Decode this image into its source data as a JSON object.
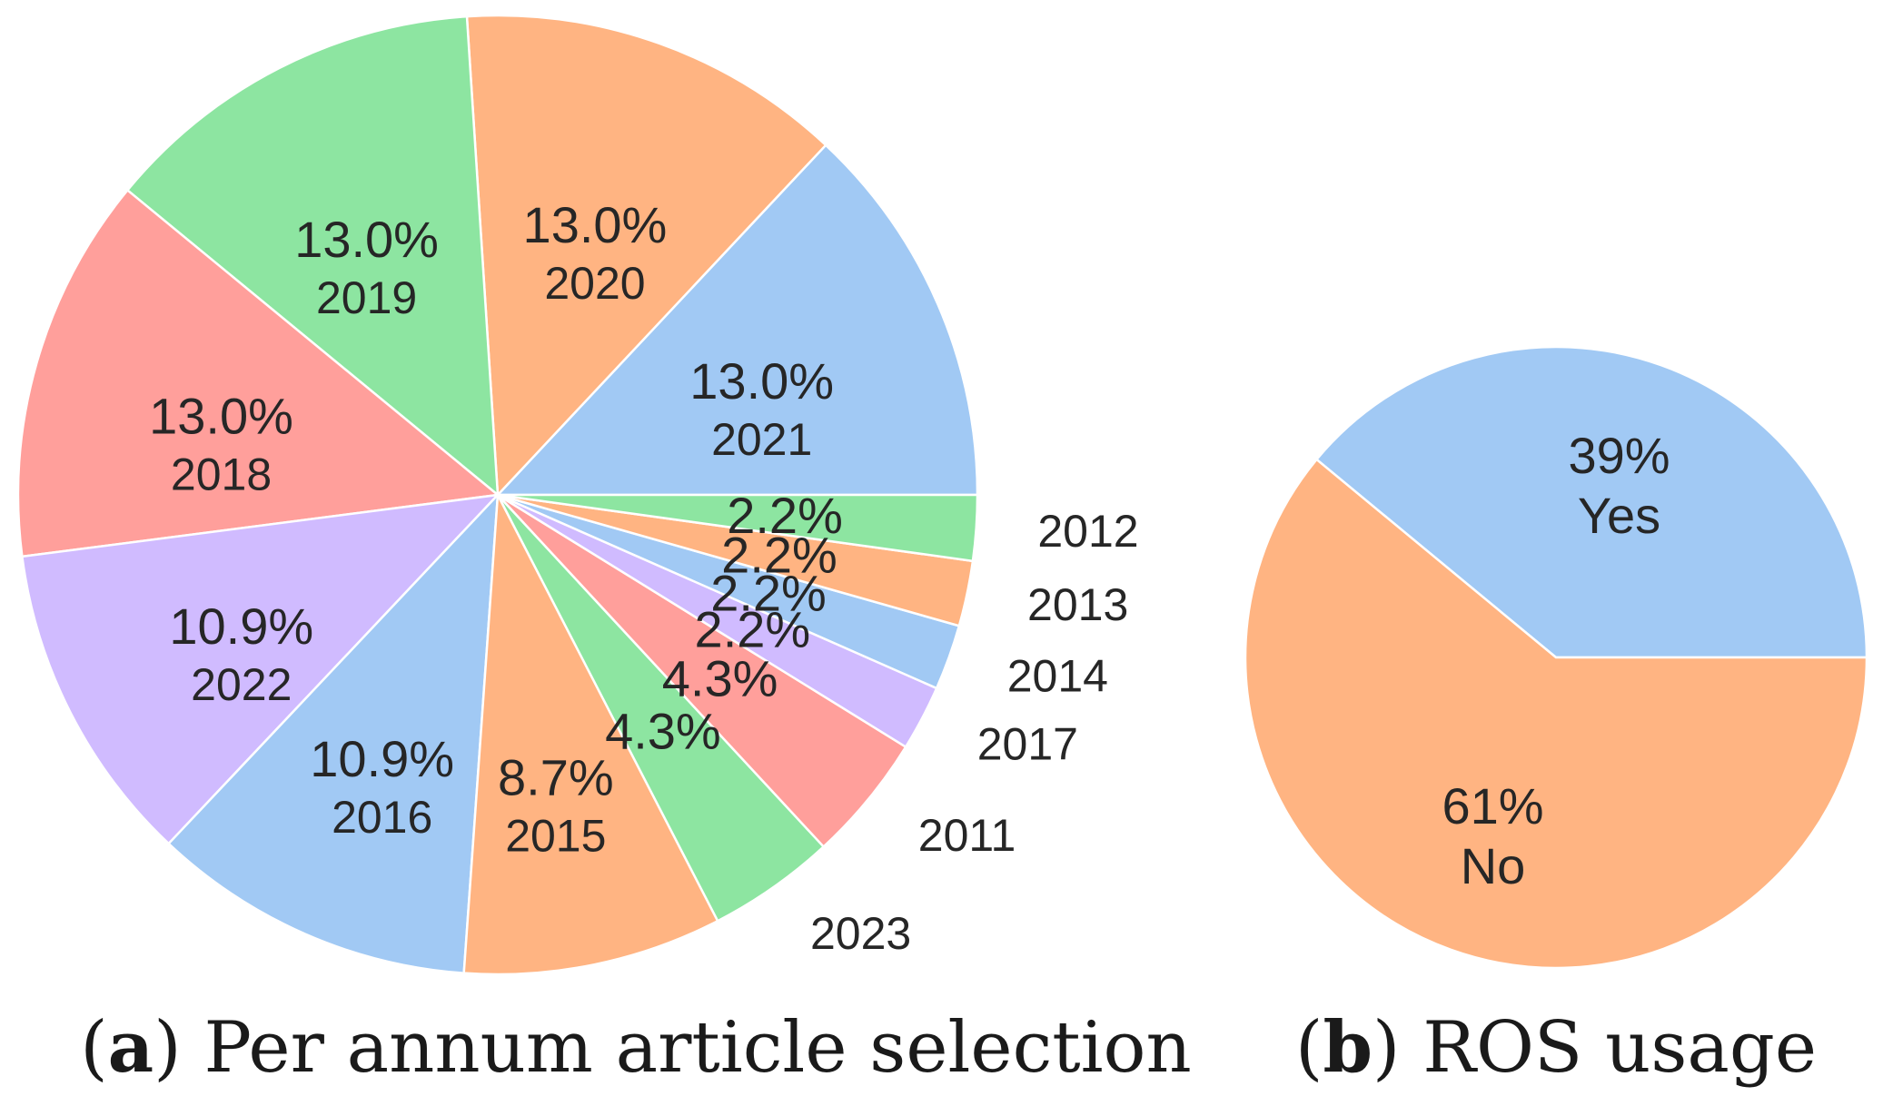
{
  "chart_data": [
    {
      "type": "pie",
      "caption": {
        "letter": "a",
        "text": "Per annum article selection"
      },
      "start_angle_deg": 0,
      "direction": "counterclockwise",
      "slices": [
        {
          "label": "2021",
          "value": 13.0,
          "pct_text": "13.0%",
          "color": "#a1c9f4"
        },
        {
          "label": "2020",
          "value": 13.0,
          "pct_text": "13.0%",
          "color": "#ffb482"
        },
        {
          "label": "2019",
          "value": 13.0,
          "pct_text": "13.0%",
          "color": "#8de5a1"
        },
        {
          "label": "2018",
          "value": 13.0,
          "pct_text": "13.0%",
          "color": "#ff9f9b"
        },
        {
          "label": "2022",
          "value": 10.9,
          "pct_text": "10.9%",
          "color": "#d0bbff"
        },
        {
          "label": "2016",
          "value": 10.9,
          "pct_text": "10.9%",
          "color": "#a1c9f4"
        },
        {
          "label": "2015",
          "value": 8.7,
          "pct_text": "8.7%",
          "color": "#ffb482"
        },
        {
          "label": "2023",
          "value": 4.3,
          "pct_text": "4.3%",
          "color": "#8de5a1"
        },
        {
          "label": "2011",
          "value": 4.3,
          "pct_text": "4.3%",
          "color": "#ff9f9b"
        },
        {
          "label": "2017",
          "value": 2.2,
          "pct_text": "2.2%",
          "color": "#d0bbff"
        },
        {
          "label": "2014",
          "value": 2.2,
          "pct_text": "2.2%",
          "color": "#a1c9f4"
        },
        {
          "label": "2013",
          "value": 2.2,
          "pct_text": "2.2%",
          "color": "#ffb482"
        },
        {
          "label": "2012",
          "value": 2.2,
          "pct_text": "2.2%",
          "color": "#8de5a1"
        }
      ]
    },
    {
      "type": "pie",
      "caption": {
        "letter": "b",
        "text": "ROS usage"
      },
      "start_angle_deg": 0,
      "direction": "counterclockwise",
      "slices": [
        {
          "label": "Yes",
          "value": 39,
          "pct_text": "39%",
          "color": "#a1c9f4"
        },
        {
          "label": "No",
          "value": 61,
          "pct_text": "61%",
          "color": "#ffb482"
        }
      ]
    }
  ]
}
